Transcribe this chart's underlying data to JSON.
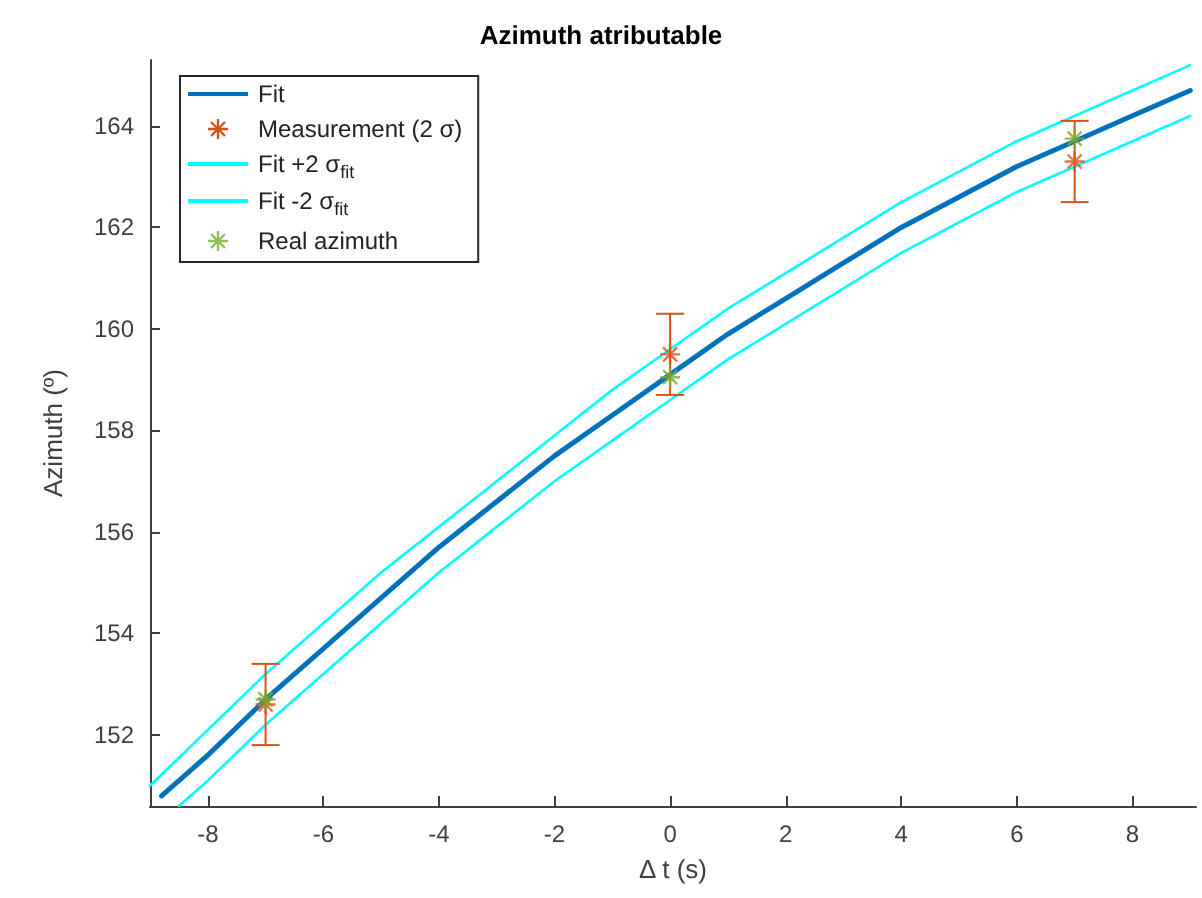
{
  "chart_data": {
    "type": "line",
    "title": "Azimuth atributable",
    "xlabel": "Δ t (s)",
    "ylabel": "Azimuth (º)",
    "xlim": [
      -9,
      9.1
    ],
    "xticks": [
      -8,
      -6,
      -4,
      -2,
      0,
      2,
      4,
      6,
      8
    ],
    "ylim": [
      150.6,
      165.3
    ],
    "yticks": [
      152,
      154,
      156,
      158,
      160,
      162,
      164
    ],
    "grid": false,
    "legend": "top left",
    "series": [
      {
        "name": "Fit",
        "color": "#0072bd",
        "marker": "none",
        "x": [
          -8.8,
          -8,
          -7,
          -6,
          -5,
          -4,
          -3,
          -2,
          -1,
          0,
          1,
          2,
          3,
          4,
          5,
          6,
          7,
          8,
          9
        ],
        "values": [
          150.8,
          151.6,
          152.7,
          153.7,
          154.7,
          155.7,
          156.6,
          157.5,
          158.3,
          159.1,
          159.9,
          160.6,
          161.3,
          162.0,
          162.6,
          163.2,
          163.7,
          164.2,
          164.7
        ]
      },
      {
        "name": "Measurement (2 σ)",
        "type": "scatter",
        "color": "#d95319",
        "marker": "cross",
        "x": [
          -7,
          0,
          7
        ],
        "values": [
          152.6,
          159.5,
          163.3
        ],
        "errors": [
          0.8,
          0.8,
          0.8
        ]
      },
      {
        "name": "Fit +2 σ$_{fit}$",
        "color": "#00ffff",
        "marker": "none",
        "x": [
          -9,
          -8,
          -7,
          -6,
          -5,
          -4,
          -3,
          -2,
          -1,
          0,
          1,
          2,
          3,
          4,
          5,
          6,
          7,
          8,
          9
        ],
        "values": [
          151.0,
          152.1,
          153.2,
          154.2,
          155.2,
          156.1,
          157.0,
          157.9,
          158.8,
          159.6,
          160.4,
          161.1,
          161.8,
          162.5,
          163.1,
          163.7,
          164.2,
          164.7,
          165.2
        ]
      },
      {
        "name": "Fit -2 σ$_{fit}$",
        "color": "#00ffff",
        "marker": "none",
        "x": [
          -8.5,
          -8,
          -7,
          -6,
          -5,
          -4,
          -3,
          -2,
          -1,
          0,
          1,
          2,
          3,
          4,
          5,
          6,
          7,
          8,
          9
        ],
        "values": [
          150.6,
          151.1,
          152.2,
          153.2,
          154.2,
          155.2,
          156.1,
          157.0,
          157.8,
          158.6,
          159.4,
          160.1,
          160.8,
          161.5,
          162.1,
          162.7,
          163.2,
          163.7,
          164.2
        ]
      },
      {
        "name": "Real azimuth",
        "type": "scatter",
        "color": "#77ac30",
        "marker": "cross",
        "x": [
          -7,
          0,
          7
        ],
        "values": [
          152.7,
          159.05,
          163.75
        ]
      }
    ]
  }
}
